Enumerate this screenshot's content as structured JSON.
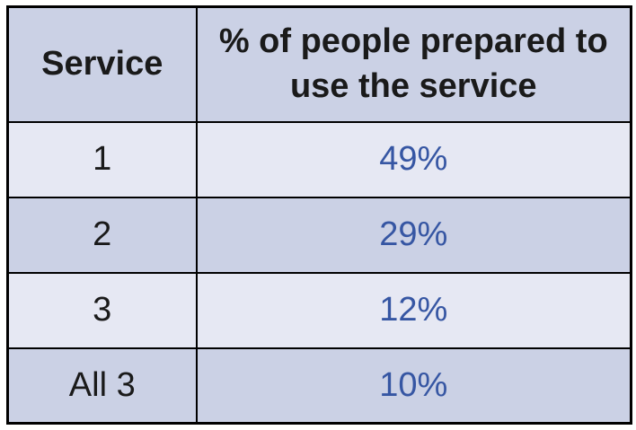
{
  "table": {
    "header": {
      "service_label": "Service",
      "percent_label": "% of people prepared to use the service"
    },
    "rows": [
      {
        "service": "1",
        "percent": "49%"
      },
      {
        "service": "2",
        "percent": "29%"
      },
      {
        "service": "3",
        "percent": "12%"
      },
      {
        "service": "All 3",
        "percent": "10%"
      }
    ],
    "colors": {
      "header_bg": "#cbd1e5",
      "row_light_bg": "#e6e8f3",
      "row_dark_bg": "#cbd1e5",
      "percent_text": "#3656a3",
      "label_text": "#1a1a1a",
      "border": "#000000",
      "page_bg": "#ffffff"
    }
  },
  "chart_data": {
    "type": "table",
    "title": "",
    "columns": [
      "Service",
      "% of people prepared to use the service"
    ],
    "categories": [
      "1",
      "2",
      "3",
      "All 3"
    ],
    "values": [
      49,
      29,
      12,
      10
    ],
    "rows": [
      [
        "1",
        "49%"
      ],
      [
        "2",
        "29%"
      ],
      [
        "3",
        "12%"
      ],
      [
        "All 3",
        "10%"
      ]
    ],
    "layout": {
      "striped_rows": true,
      "grid": "all-borders",
      "header_style": "bold-black",
      "value_style": "blue"
    }
  }
}
